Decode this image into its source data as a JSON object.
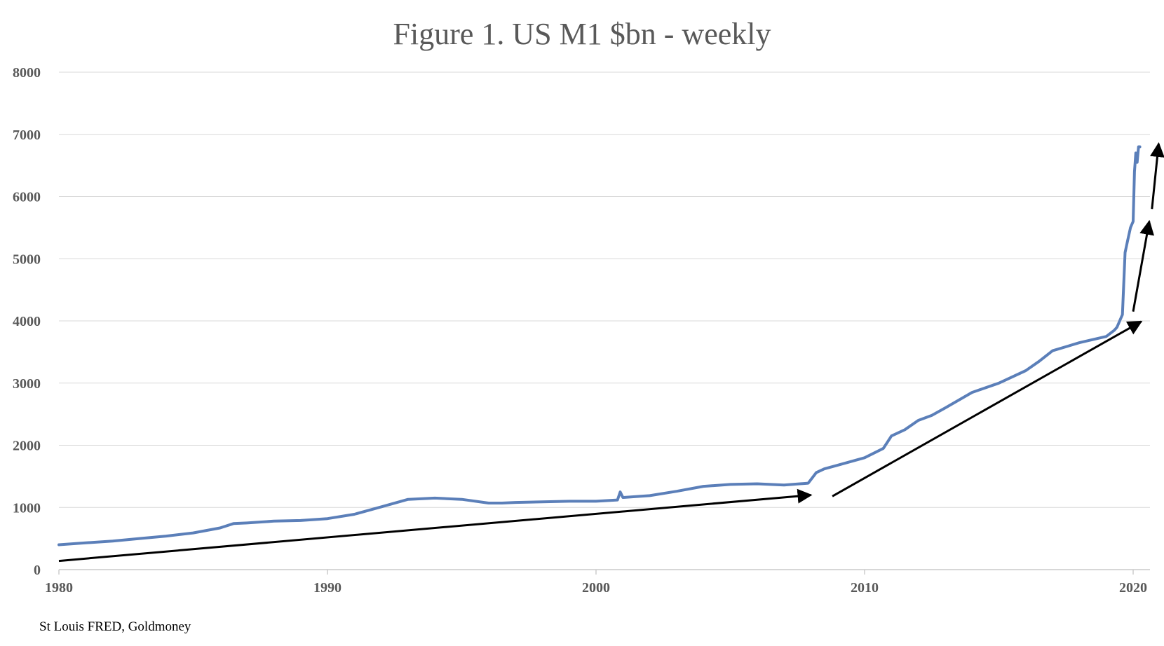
{
  "chart_data": {
    "type": "line",
    "title": "Figure 1. US M1 $bn - weekly",
    "xlabel": "",
    "ylabel": "",
    "xlim": [
      1980,
      2020.6
    ],
    "ylim": [
      0,
      8000
    ],
    "x_ticks": [
      "1980",
      "1990",
      "2000",
      "2010",
      "2020"
    ],
    "y_ticks": [
      "0",
      "1000",
      "2000",
      "3000",
      "4000",
      "5000",
      "6000",
      "7000",
      "8000"
    ],
    "grid": true,
    "legend": "none",
    "series": [
      {
        "color": "#5b7fb9",
        "x": [
          1980.0,
          1981.0,
          1982.0,
          1983.0,
          1984.0,
          1985.0,
          1986.0,
          1986.5,
          1987.0,
          1988.0,
          1989.0,
          1990.0,
          1991.0,
          1992.0,
          1993.0,
          1994.0,
          1995.0,
          1996.0,
          1996.5,
          1997.0,
          1998.0,
          1999.0,
          2000.0,
          2000.8,
          2000.9,
          2001.0,
          2002.0,
          2003.0,
          2004.0,
          2005.0,
          2006.0,
          2007.0,
          2007.9,
          2008.2,
          2008.5,
          2009.0,
          2010.0,
          2010.7,
          2011.0,
          2011.5,
          2012.0,
          2012.5,
          2013.0,
          2014.0,
          2015.0,
          2016.0,
          2016.5,
          2017.0,
          2018.0,
          2019.0,
          2019.3,
          2019.4,
          2019.5,
          2019.6,
          2019.7,
          2019.8,
          2019.9,
          2020.0,
          2020.05,
          2020.1,
          2020.15,
          2020.2,
          2020.25
        ],
        "y": [
          400,
          430,
          460,
          500,
          540,
          590,
          670,
          740,
          750,
          780,
          790,
          820,
          890,
          1010,
          1130,
          1150,
          1130,
          1070,
          1070,
          1080,
          1090,
          1100,
          1100,
          1120,
          1250,
          1160,
          1190,
          1260,
          1340,
          1370,
          1380,
          1360,
          1390,
          1560,
          1620,
          1680,
          1800,
          1950,
          2150,
          2250,
          2400,
          2480,
          2600,
          2850,
          3000,
          3200,
          3350,
          3520,
          3650,
          3750,
          3850,
          3900,
          4000,
          4100,
          5100,
          5300,
          5500,
          5600,
          6400,
          6700,
          6550,
          6800,
          6800
        ]
      }
    ],
    "annotations": [
      {
        "type": "arrow",
        "from": [
          1980.0,
          140
        ],
        "to": [
          2008.0,
          1200
        ]
      },
      {
        "type": "arrow",
        "from": [
          2008.8,
          1180
        ],
        "to": [
          2020.3,
          3990
        ]
      },
      {
        "type": "arrow",
        "from": [
          2020.0,
          4150
        ],
        "to": [
          2020.6,
          5600
        ]
      },
      {
        "type": "arrow",
        "from": [
          2020.7,
          5800
        ],
        "to": [
          2020.95,
          6850
        ]
      }
    ]
  },
  "source": "St Louis FRED, Goldmoney"
}
